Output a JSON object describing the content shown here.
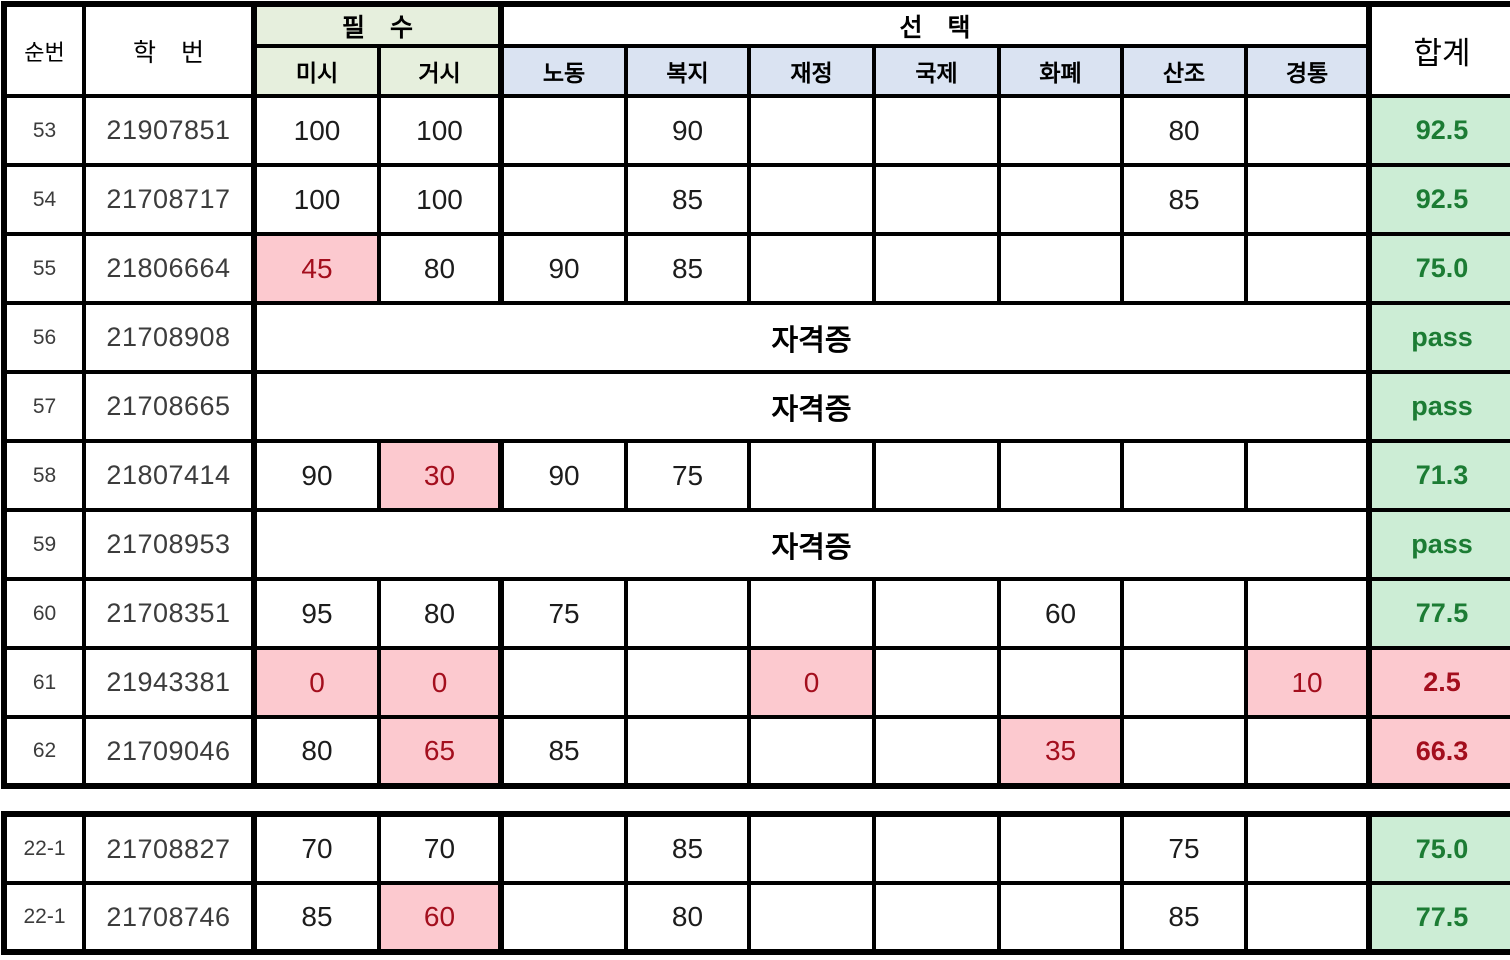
{
  "header": {
    "seq": "순번",
    "student_id": "학　번",
    "required_group": "필　수",
    "elective_group": "선　택",
    "total": "합계",
    "required_cols": [
      "미시",
      "거시"
    ],
    "elective_cols": [
      "노동",
      "복지",
      "재정",
      "국제",
      "화폐",
      "산조",
      "경통"
    ]
  },
  "colors": {
    "required_header_bg": "#e6efdd",
    "elective_header_bg": "#dae3f2",
    "pass_bg": "#ccedd5",
    "pass_text": "#1c7c34",
    "fail_bg": "#fcc9cf",
    "fail_text": "#a30e1d",
    "grid": "#000000"
  },
  "cert_label": "자격증",
  "main_rows": [
    {
      "seq": "53",
      "id": "21907851",
      "scores": [
        "100",
        "100",
        "",
        "90",
        "",
        "",
        "",
        "80",
        ""
      ],
      "bad": [],
      "total": "92.5",
      "total_state": "good"
    },
    {
      "seq": "54",
      "id": "21708717",
      "scores": [
        "100",
        "100",
        "",
        "85",
        "",
        "",
        "",
        "85",
        ""
      ],
      "bad": [],
      "total": "92.5",
      "total_state": "good"
    },
    {
      "seq": "55",
      "id": "21806664",
      "scores": [
        "45",
        "80",
        "90",
        "85",
        "",
        "",
        "",
        "",
        ""
      ],
      "bad": [
        0
      ],
      "total": "75.0",
      "total_state": "good"
    },
    {
      "seq": "56",
      "id": "21708908",
      "merged": "자격증",
      "total": "pass",
      "total_state": "good"
    },
    {
      "seq": "57",
      "id": "21708665",
      "merged": "자격증",
      "total": "pass",
      "total_state": "good"
    },
    {
      "seq": "58",
      "id": "21807414",
      "scores": [
        "90",
        "30",
        "90",
        "75",
        "",
        "",
        "",
        "",
        ""
      ],
      "bad": [
        1
      ],
      "total": "71.3",
      "total_state": "good"
    },
    {
      "seq": "59",
      "id": "21708953",
      "merged": "자격증",
      "total": "pass",
      "total_state": "good"
    },
    {
      "seq": "60",
      "id": "21708351",
      "scores": [
        "95",
        "80",
        "75",
        "",
        "",
        "",
        "60",
        "",
        ""
      ],
      "bad": [],
      "total": "77.5",
      "total_state": "good"
    },
    {
      "seq": "61",
      "id": "21943381",
      "scores": [
        "0",
        "0",
        "",
        "",
        "0",
        "",
        "",
        "",
        "10"
      ],
      "bad": [
        0,
        1,
        4,
        8
      ],
      "total": "2.5",
      "total_state": "bad"
    },
    {
      "seq": "62",
      "id": "21709046",
      "scores": [
        "80",
        "65",
        "85",
        "",
        "",
        "",
        "35",
        "",
        ""
      ],
      "bad": [
        1,
        6
      ],
      "total": "66.3",
      "total_state": "bad"
    }
  ],
  "extra_rows": [
    {
      "seq": "22-1",
      "id": "21708827",
      "scores": [
        "70",
        "70",
        "",
        "85",
        "",
        "",
        "",
        "75",
        ""
      ],
      "bad": [],
      "total": "75.0",
      "total_state": "good"
    },
    {
      "seq": "22-1",
      "id": "21708746",
      "scores": [
        "85",
        "60",
        "",
        "80",
        "",
        "",
        "",
        "85",
        ""
      ],
      "bad": [
        1
      ],
      "total": "77.5",
      "total_state": "good"
    }
  ]
}
